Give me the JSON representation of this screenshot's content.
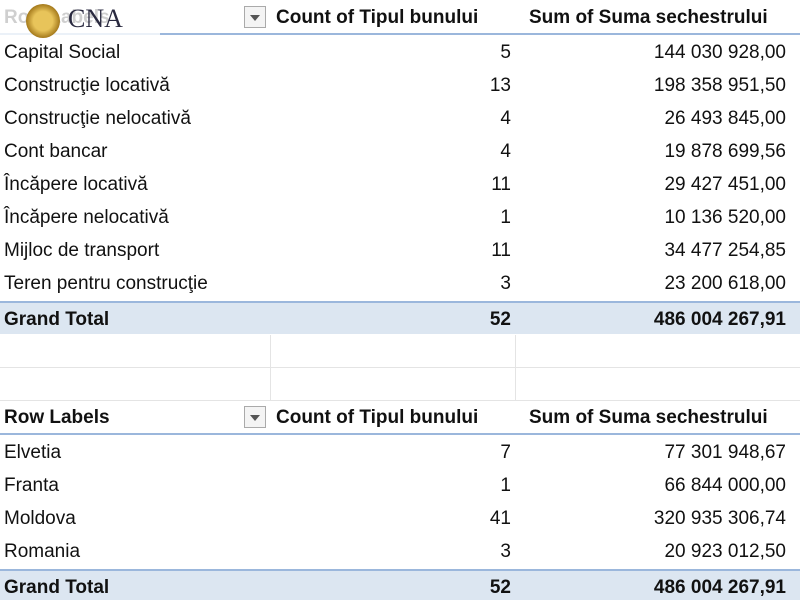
{
  "logo": {
    "text": "CNA"
  },
  "tables": [
    {
      "header": [
        "Row Labels",
        "Count of Tipul bunului",
        "Sum of Suma sechestrului"
      ],
      "rows": [
        [
          "Capital Social",
          "5",
          "144 030 928,00"
        ],
        [
          "Construcţie locativă",
          "13",
          "198 358 951,50"
        ],
        [
          "Construcţie nelocativă",
          "4",
          "26 493 845,00"
        ],
        [
          "Cont bancar",
          "4",
          "19 878 699,56"
        ],
        [
          "Încăpere locativă",
          "11",
          "29 427 451,00"
        ],
        [
          "Încăpere nelocativă",
          "1",
          "10 136 520,00"
        ],
        [
          "Mijloc de transport",
          "11",
          "34 477 254,85"
        ],
        [
          "Teren pentru construcţie",
          "3",
          "23 200 618,00"
        ]
      ],
      "total": [
        "Grand Total",
        "52",
        "486 004 267,91"
      ]
    },
    {
      "header": [
        "Row Labels",
        "Count of Tipul bunului",
        "Sum of Suma sechestrului"
      ],
      "rows": [
        [
          "Elvetia",
          "7",
          "77 301 948,67"
        ],
        [
          "Franta",
          "1",
          "66 844 000,00"
        ],
        [
          "Moldova",
          "41",
          "320 935 306,74"
        ],
        [
          "Romania",
          "3",
          "20 923 012,50"
        ]
      ],
      "total": [
        "Grand Total",
        "52",
        "486 004 267,91"
      ]
    }
  ]
}
